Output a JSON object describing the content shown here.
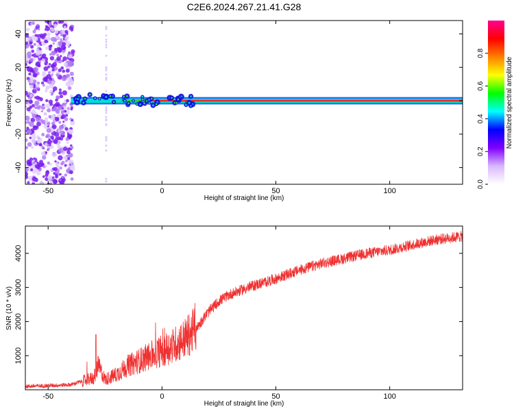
{
  "title": "C2E6.2024.267.21.41.G28",
  "chart_data": [
    {
      "type": "heatmap",
      "xlabel": "Height of straight line (km)",
      "ylabel": "Frequency (Hz)",
      "xlim": [
        -60,
        132
      ],
      "ylim": [
        -50,
        48
      ],
      "x_ticks": [
        -50,
        0,
        50,
        100
      ],
      "y_ticks": [
        -40,
        -20,
        0,
        20,
        40
      ],
      "colorbar": {
        "label": "Normalized spectral amplitude",
        "range": [
          0.0,
          1.0
        ],
        "ticks": [
          "0.0",
          "0.2",
          "0.4",
          "0.6",
          "0.8"
        ],
        "colors": [
          "#ffffff",
          "#d9b8ff",
          "#7f00ff",
          "#0000ff",
          "#00ffff",
          "#00ff00",
          "#ffff00",
          "#ff8000",
          "#ff0000",
          "#ff0090"
        ]
      },
      "ridge": {
        "x_start": -40,
        "x_end": 132,
        "frequency_hz": 0,
        "amplitude": 1.0
      },
      "noise_region_x": [
        -60,
        -39
      ]
    },
    {
      "type": "line",
      "xlabel": "Height of straight line (km)",
      "ylabel": "SNR (10 * v/v)",
      "xlim": [
        -60,
        132
      ],
      "ylim": [
        0,
        4800
      ],
      "x_ticks": [
        -50,
        0,
        50,
        100
      ],
      "y_ticks": [
        1000,
        2000,
        3000,
        4000
      ],
      "line_color": "#f03030",
      "trend": {
        "x": [
          -60,
          -50,
          -40,
          -35,
          -30,
          -28,
          -25,
          -20,
          -15,
          -10,
          -5,
          0,
          5,
          10,
          15,
          20,
          25,
          30,
          40,
          50,
          60,
          70,
          80,
          90,
          100,
          110,
          120,
          132
        ],
        "y": [
          100,
          120,
          150,
          250,
          350,
          700,
          300,
          450,
          700,
          850,
          1000,
          1150,
          1300,
          1500,
          1800,
          2250,
          2600,
          2800,
          3050,
          3250,
          3500,
          3700,
          3850,
          4000,
          4100,
          4250,
          4400,
          4500
        ]
      }
    }
  ]
}
